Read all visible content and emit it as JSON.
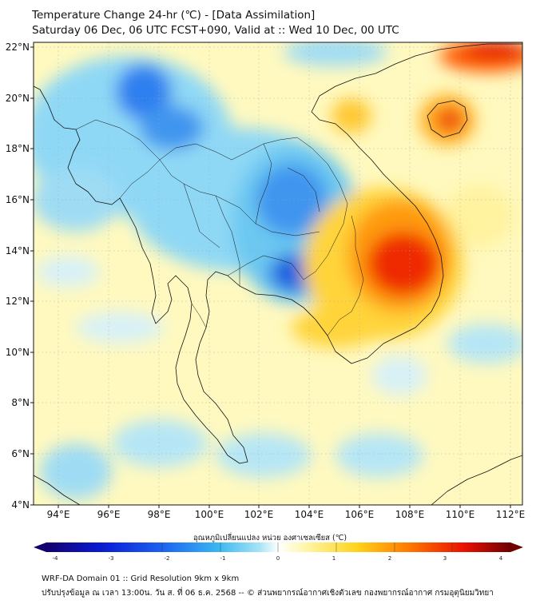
{
  "header": {
    "title": "Temperature Change 24-hr (℃) - [Data Assimilation]",
    "subtitle": "Saturday 06 Dec, 06 UTC FCST+090, Valid at :: Wed 10 Dec, 00 UTC"
  },
  "map": {
    "lon_range": [
      93,
      112.5
    ],
    "lat_range": [
      4,
      22.2
    ],
    "lon_ticks": [
      "94°E",
      "96°E",
      "98°E",
      "100°E",
      "102°E",
      "104°E",
      "106°E",
      "108°E",
      "110°E",
      "112°E"
    ],
    "lat_ticks": [
      "22°N",
      "20°N",
      "18°N",
      "16°N",
      "14°N",
      "12°N",
      "10°N",
      "8°N",
      "6°N",
      "4°N"
    ]
  },
  "colorbar": {
    "title": "อุณหภูมิเปลี่ยนแปลง หน่วย องศาเซลเซียส (℃)",
    "ticks": [
      "-4",
      "-3",
      "-2",
      "-1",
      "0",
      "1",
      "2",
      "3",
      "4"
    ],
    "range": [
      -4,
      4
    ],
    "colors": [
      "#14006e",
      "#0a1bd6",
      "#1c63f0",
      "#39b7f2",
      "#a8e4f6",
      "#ffffff",
      "#fff6a6",
      "#ffd21a",
      "#ff7a00",
      "#ea1000",
      "#6e0000"
    ]
  },
  "footer": {
    "line1": "WRF-DA Domain 01 :: Grid Resolution 9km x 9km",
    "line2": "ปรับปรุงข้อมูล ณ เวลา 13:00น. วัน ส. ที่ 06 ธ.ค. 2568 -- © ส่วนพยากรณ์อากาศเชิงตัวเลข กองพยากรณ์อากาศ กรมอุตุนิยมวิทยา"
  }
}
